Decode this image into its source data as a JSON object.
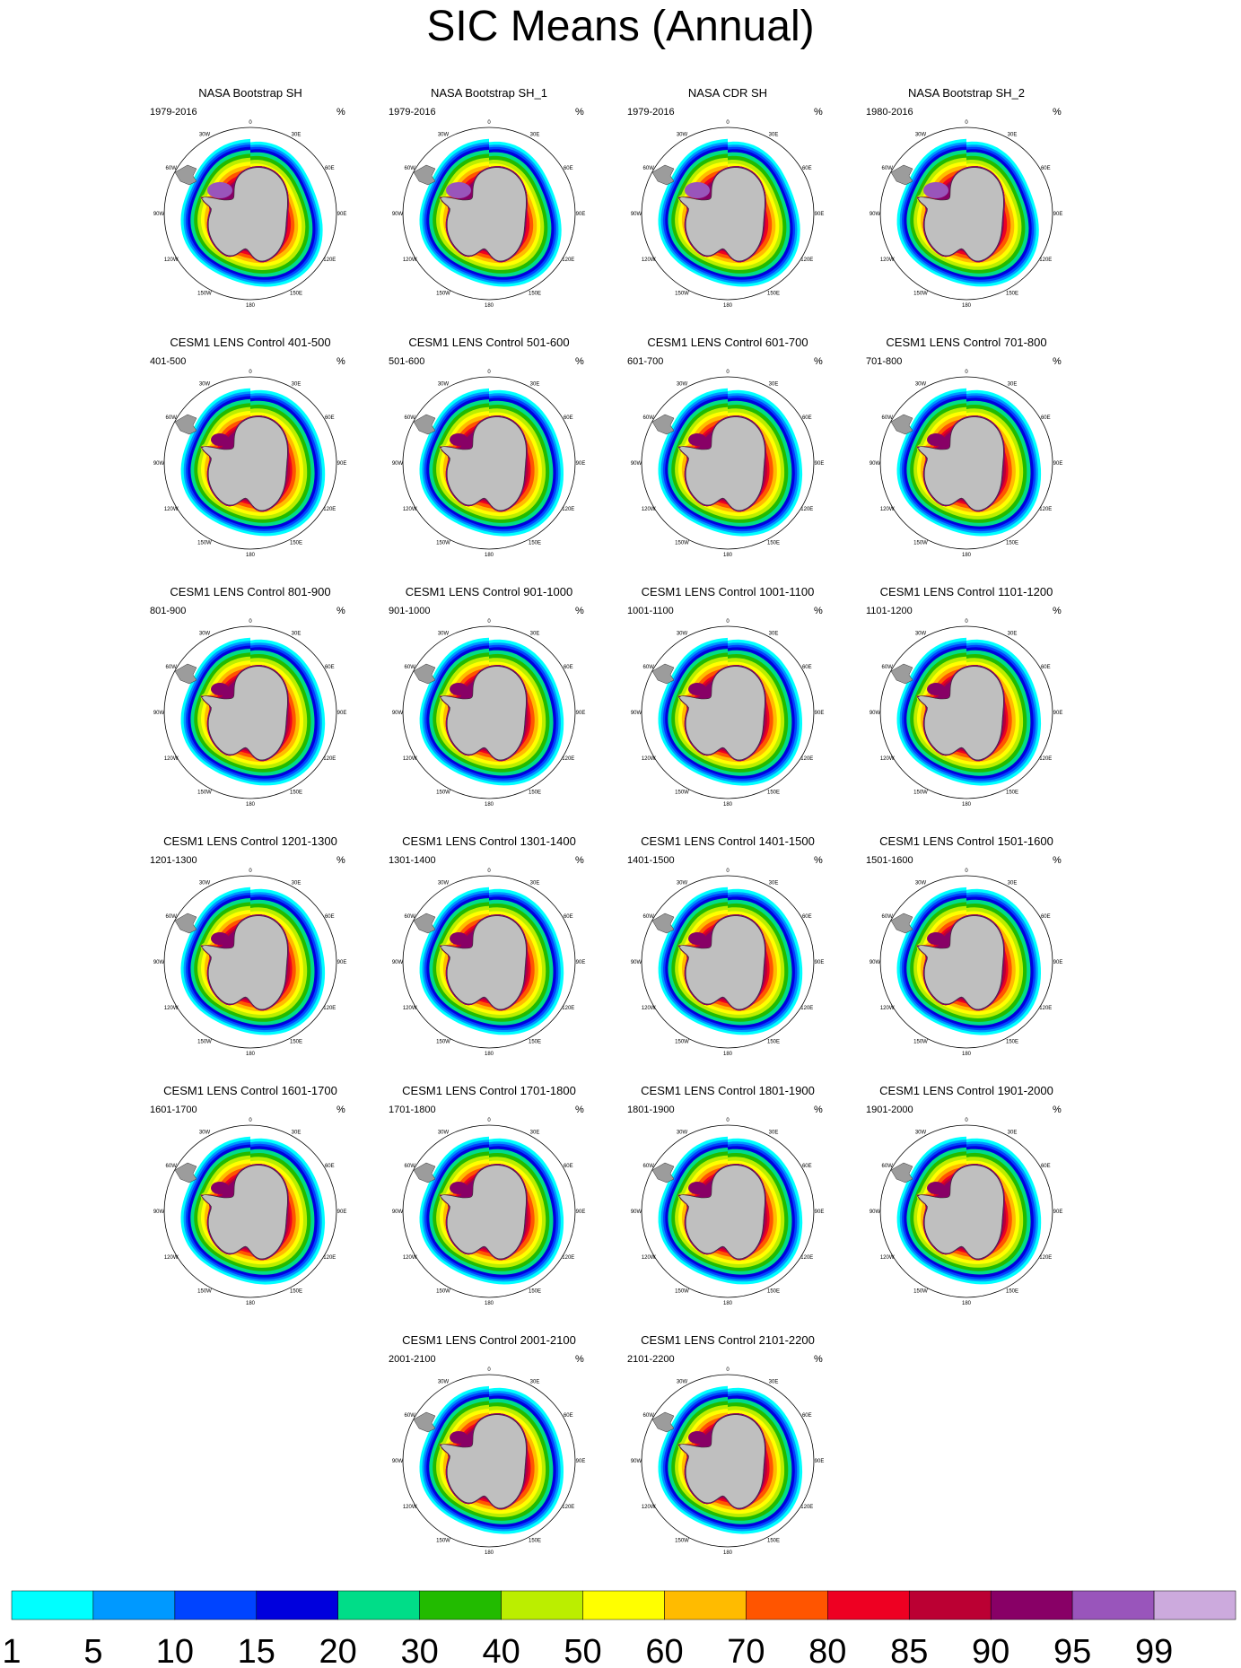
{
  "page": {
    "title": "SIC Means (Annual)"
  },
  "panels": [
    {
      "title": "NASA Bootstrap SH",
      "period": "1979-2016",
      "units": "%",
      "kind": "obs"
    },
    {
      "title": "NASA Bootstrap SH_1",
      "period": "1979-2016",
      "units": "%",
      "kind": "obs"
    },
    {
      "title": "NASA CDR SH",
      "period": "1979-2016",
      "units": "%",
      "kind": "obs"
    },
    {
      "title": "NASA Bootstrap SH_2",
      "period": "1980-2016",
      "units": "%",
      "kind": "obs"
    },
    {
      "title": "CESM1 LENS Control 401-500",
      "period": "401-500",
      "units": "%",
      "kind": "model"
    },
    {
      "title": "CESM1 LENS Control 501-600",
      "period": "501-600",
      "units": "%",
      "kind": "model"
    },
    {
      "title": "CESM1 LENS Control 601-700",
      "period": "601-700",
      "units": "%",
      "kind": "model"
    },
    {
      "title": "CESM1 LENS Control 701-800",
      "period": "701-800",
      "units": "%",
      "kind": "model"
    },
    {
      "title": "CESM1 LENS Control 801-900",
      "period": "801-900",
      "units": "%",
      "kind": "model"
    },
    {
      "title": "CESM1 LENS Control 901-1000",
      "period": "901-1000",
      "units": "%",
      "kind": "model"
    },
    {
      "title": "CESM1 LENS Control 1001-1100",
      "period": "1001-1100",
      "units": "%",
      "kind": "model"
    },
    {
      "title": "CESM1 LENS Control 1101-1200",
      "period": "1101-1200",
      "units": "%",
      "kind": "model"
    },
    {
      "title": "CESM1 LENS Control 1201-1300",
      "period": "1201-1300",
      "units": "%",
      "kind": "model"
    },
    {
      "title": "CESM1 LENS Control 1301-1400",
      "period": "1301-1400",
      "units": "%",
      "kind": "model"
    },
    {
      "title": "CESM1 LENS Control 1401-1500",
      "period": "1401-1500",
      "units": "%",
      "kind": "model"
    },
    {
      "title": "CESM1 LENS Control 1501-1600",
      "period": "1501-1600",
      "units": "%",
      "kind": "model"
    },
    {
      "title": "CESM1 LENS Control 1601-1700",
      "period": "1601-1700",
      "units": "%",
      "kind": "model"
    },
    {
      "title": "CESM1 LENS Control 1701-1800",
      "period": "1701-1800",
      "units": "%",
      "kind": "model"
    },
    {
      "title": "CESM1 LENS Control 1801-1900",
      "period": "1801-1900",
      "units": "%",
      "kind": "model"
    },
    {
      "title": "CESM1 LENS Control 1901-2000",
      "period": "1901-2000",
      "units": "%",
      "kind": "model"
    },
    {
      "title": "CESM1 LENS Control 2001-2100",
      "period": "2001-2100",
      "units": "%",
      "kind": "model"
    },
    {
      "title": "CESM1 LENS Control 2101-2200",
      "period": "2101-2200",
      "units": "%",
      "kind": "model"
    }
  ],
  "map": {
    "projection": "south polar stereographic",
    "longitude_labels": [
      "0",
      "30E",
      "60E",
      "90E",
      "120E",
      "150E",
      "180",
      "150W",
      "120W",
      "90W",
      "60W",
      "30W"
    ]
  },
  "chart_data": {
    "type": "heatmap",
    "title": "SIC Means (Annual)",
    "units": "%",
    "colorbar": {
      "levels": [
        "1",
        "5",
        "10",
        "15",
        "20",
        "30",
        "40",
        "50",
        "60",
        "70",
        "80",
        "85",
        "90",
        "95",
        "99"
      ],
      "colors": [
        "#00ffff",
        "#0099ff",
        "#0044ff",
        "#0000dd",
        "#00dd88",
        "#22bb00",
        "#bbee00",
        "#ffff00",
        "#ffbb00",
        "#ff5500",
        "#ee0022",
        "#bb0033",
        "#880066",
        "#9955bb",
        "#ccaadd"
      ]
    },
    "land_color": "#bfbfbf"
  }
}
